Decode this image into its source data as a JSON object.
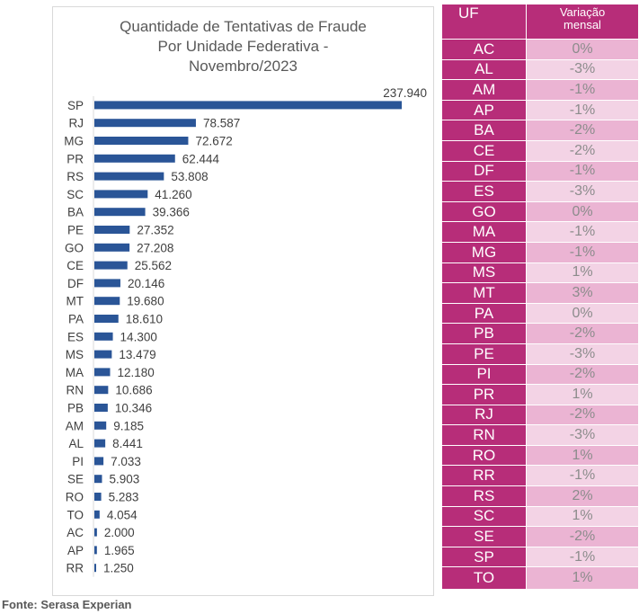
{
  "chart_data": {
    "type": "bar",
    "orientation": "horizontal",
    "title": [
      "Quantidade de Tentativas de Fraude",
      "Por Unidade Federativa -",
      "Novembro/2023"
    ],
    "categories": [
      "SP",
      "RJ",
      "MG",
      "PR",
      "RS",
      "SC",
      "BA",
      "PE",
      "GO",
      "CE",
      "DF",
      "MT",
      "PA",
      "ES",
      "MS",
      "MA",
      "RN",
      "PB",
      "AM",
      "AL",
      "PI",
      "SE",
      "RO",
      "TO",
      "AC",
      "AP",
      "RR"
    ],
    "values": [
      237940,
      78587,
      72672,
      62444,
      53808,
      41260,
      39366,
      27352,
      27208,
      25562,
      20146,
      19680,
      18610,
      14300,
      13479,
      12180,
      10686,
      10346,
      9185,
      8441,
      7033,
      5903,
      5283,
      4054,
      2000,
      1965,
      1250
    ],
    "value_labels": [
      "237.940",
      "78.587",
      "72.672",
      "62.444",
      "53.808",
      "41.260",
      "39.366",
      "27.352",
      "27.208",
      "25.562",
      "20.146",
      "19.680",
      "18.610",
      "14.300",
      "13.479",
      "12.180",
      "10.686",
      "10.346",
      "9.185",
      "8.441",
      "7.033",
      "5.903",
      "5.283",
      "4.054",
      "2.000",
      "1.965",
      "1.250"
    ],
    "xlabel": "",
    "ylabel": "",
    "xlim": [
      0,
      237940
    ],
    "grid": false,
    "legend": "none",
    "bar_color": "#2a5597"
  },
  "table": {
    "header_uf": "UF",
    "header_var": [
      "Variação",
      "mensal"
    ],
    "rows": [
      {
        "uf": "AC",
        "var": "0%"
      },
      {
        "uf": "AL",
        "var": "-3%"
      },
      {
        "uf": "AM",
        "var": "-1%"
      },
      {
        "uf": "AP",
        "var": "-1%"
      },
      {
        "uf": "BA",
        "var": "-2%"
      },
      {
        "uf": "CE",
        "var": "-2%"
      },
      {
        "uf": "DF",
        "var": "-1%"
      },
      {
        "uf": "ES",
        "var": "-3%"
      },
      {
        "uf": "GO",
        "var": "0%"
      },
      {
        "uf": "MA",
        "var": "-1%"
      },
      {
        "uf": "MG",
        "var": "-1%"
      },
      {
        "uf": "MS",
        "var": "1%"
      },
      {
        "uf": "MT",
        "var": "3%"
      },
      {
        "uf": "PA",
        "var": "0%"
      },
      {
        "uf": "PB",
        "var": "-2%"
      },
      {
        "uf": "PE",
        "var": "-3%"
      },
      {
        "uf": "PI",
        "var": "-2%"
      },
      {
        "uf": "PR",
        "var": "1%"
      },
      {
        "uf": "RJ",
        "var": "-2%"
      },
      {
        "uf": "RN",
        "var": "-3%"
      },
      {
        "uf": "RO",
        "var": "1%"
      },
      {
        "uf": "RR",
        "var": "-1%"
      },
      {
        "uf": "RS",
        "var": "2%"
      },
      {
        "uf": "SC",
        "var": "1%"
      },
      {
        "uf": "SE",
        "var": "-2%"
      },
      {
        "uf": "SP",
        "var": "-1%"
      },
      {
        "uf": "TO",
        "var": "1%"
      }
    ],
    "colors": {
      "header": "#b72d79",
      "row_odd": "#ebb4d3",
      "row_even": "#f3d3e5",
      "value_text": "#8c8c8c"
    }
  },
  "source": "Fonte: Serasa Experian"
}
